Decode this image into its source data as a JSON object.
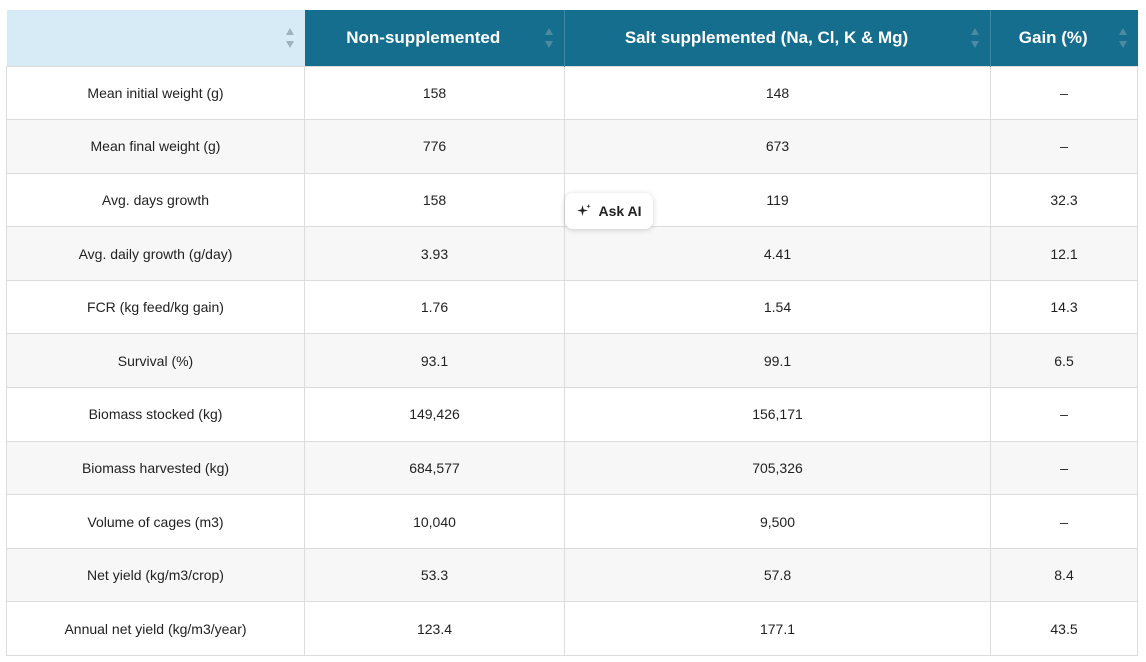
{
  "table": {
    "headers": [
      {
        "label": ""
      },
      {
        "label": "Non-supplemented"
      },
      {
        "label": "Salt supplemented (Na, Cl, K & Mg)"
      },
      {
        "label": "Gain (%)"
      }
    ],
    "rows": [
      [
        "Mean initial weight (g)",
        "158",
        "148",
        "–"
      ],
      [
        "Mean final weight (g)",
        "776",
        "673",
        "–"
      ],
      [
        "Avg. days growth",
        "158",
        "119",
        "32.3"
      ],
      [
        "Avg. daily growth (g/day)",
        "3.93",
        "4.41",
        "12.1"
      ],
      [
        "FCR (kg feed/kg gain)",
        "1.76",
        "1.54",
        "14.3"
      ],
      [
        "Survival (%)",
        "93.1",
        "99.1",
        "6.5"
      ],
      [
        "Biomass stocked (kg)",
        "149,426",
        "156,171",
        "–"
      ],
      [
        "Biomass harvested (kg)",
        "684,577",
        "705,326",
        "–"
      ],
      [
        "Volume of cages (m3)",
        "10,040",
        "9,500",
        "–"
      ],
      [
        "Net yield (kg/m3/crop)",
        "53.3",
        "57.8",
        "8.4"
      ],
      [
        "Annual net yield (kg/m3/year)",
        "123.4",
        "177.1",
        "43.5"
      ]
    ]
  },
  "ask_ai": {
    "label": "Ask AI",
    "icon": "sparkle-icon"
  },
  "colors": {
    "header_bg": "#156e8d",
    "header_first_bg": "#d6ebf5",
    "row_alt_bg": "#f7f7f7"
  }
}
